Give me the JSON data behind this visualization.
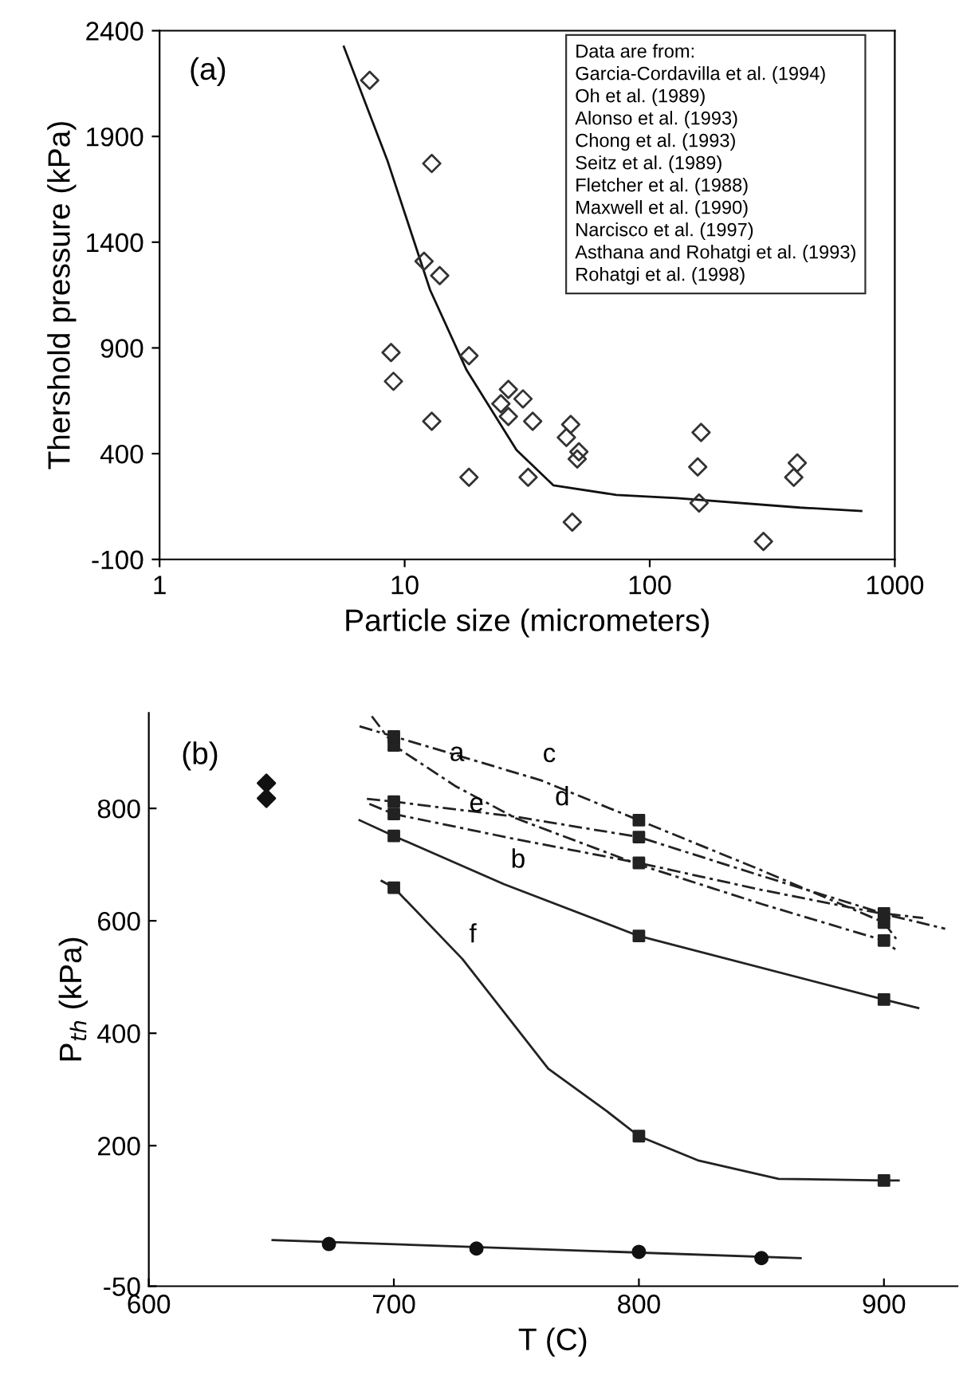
{
  "chart_data": [
    {
      "type": "scatter",
      "xlabel": "Particle size (micrometers)",
      "ylabel": "Thershold pressure (kPa)",
      "log": "x",
      "xlim": [
        1,
        1000
      ],
      "xticks": [
        1,
        10,
        100,
        1000
      ],
      "ylim": [
        -100,
        2400
      ],
      "yticks": [
        -100,
        400,
        900,
        1400,
        1900,
        2400
      ],
      "grid": false,
      "legend": false,
      "annotations": [
        "(a)",
        "Data are from:\nGarcia-Cordavilla et al. (1994)\nOh et al. (1989)\nAlonso et al. (1993)\nChong et al. (1993)\nSeitz et al. (1989)\nFletcher et al. (1988)\nMaxwell et al. (1990)\nNarcisco et al. (1997)\nAsthana and Rohatgi et al. (1993)\nRohatgi et al. (1998)"
      ],
      "series": [
        {
          "marker": "diamond",
          "color": "#333333",
          "x": [
            7.2,
            12.9,
            13.9,
            12.0,
            8.8,
            9.0,
            12.9,
            18.3,
            24.7,
            26.5,
            30.4,
            26.5,
            33.3,
            47.6,
            45.7,
            51.4,
            50.6,
            18.3,
            31.9,
            48.3,
            157,
            159,
            387,
            291,
            162,
            400
          ],
          "values": [
            2165,
            1772,
            1242,
            1310,
            878,
            742,
            553,
            863,
            636,
            704,
            659,
            576,
            553,
            538,
            477,
            409,
            375,
            288,
            288,
            76,
            337,
            167,
            288,
            -15,
            500,
            356
          ]
        },
        {
          "type": "line",
          "marker": "none",
          "line_style": "solid",
          "color": "#111111",
          "x": [
            5.65,
            8.5,
            12.7,
            17.9,
            28.6,
            40.5,
            73,
            129,
            410,
            730
          ],
          "values": [
            2324,
            1787,
            1174,
            795,
            417,
            250,
            205,
            190,
            145,
            129
          ]
        }
      ]
    },
    {
      "type": "line",
      "xlabel": "T (C)",
      "ylabel": "P$_{th}$ (kPa)",
      "xlim": [
        600,
        930
      ],
      "xticks": [
        600,
        700,
        800,
        900
      ],
      "ylim": [
        -50,
        970
      ],
      "yticks": [
        -50,
        200,
        400,
        600,
        800
      ],
      "grid": false,
      "legend": false,
      "annotations": [
        "(b)",
        {
          "text": "a",
          "x": 720,
          "y": 855
        },
        {
          "text": "c",
          "x": 758,
          "y": 853
        },
        {
          "text": "d",
          "x": 763,
          "y": 776
        },
        {
          "text": "e",
          "x": 728,
          "y": 765
        },
        {
          "text": "b",
          "x": 745,
          "y": 665
        },
        {
          "text": "f",
          "x": 728,
          "y": 532
        }
      ],
      "series": [
        {
          "marker": "none",
          "line_style": "dashed",
          "color": "#222222",
          "x": [
            691,
            700,
            725,
            750,
            800,
            850,
            900,
            905
          ],
          "values": [
            964,
            912,
            840,
            782,
            700,
            630,
            565,
            548
          ]
        },
        {
          "marker": "none",
          "line_style": "solid",
          "color": "#222222",
          "x": [
            686,
            700,
            745,
            800,
            900,
            914
          ],
          "values": [
            779,
            751,
            665,
            573,
            460,
            445
          ]
        },
        {
          "marker": "none",
          "line_style": "dashed",
          "color": "#222222",
          "x": [
            686,
            700,
            760,
            800,
            850,
            900,
            905
          ],
          "values": [
            946,
            928,
            850,
            779,
            690,
            597,
            568
          ]
        },
        {
          "marker": "none",
          "line_style": "dashed",
          "color": "#222222",
          "x": [
            689,
            700,
            750,
            800,
            850,
            900,
            916
          ],
          "values": [
            817,
            812,
            785,
            749,
            680,
            613,
            605
          ]
        },
        {
          "marker": "none",
          "line_style": "dashed",
          "color": "#222222",
          "x": [
            690,
            700,
            750,
            800,
            850,
            900,
            925
          ],
          "values": [
            808,
            790,
            745,
            703,
            655,
            612,
            586
          ]
        },
        {
          "marker": "none",
          "line_style": "solid",
          "color": "#222222",
          "x": [
            695,
            700,
            728,
            763,
            787,
            800,
            824,
            857,
            900,
            906
          ],
          "values": [
            671,
            659,
            532,
            337,
            261,
            217,
            174,
            141,
            138,
            138
          ]
        },
        {
          "marker": "none",
          "line_style": "solid",
          "color": "#222222",
          "x": [
            650.5,
            866
          ],
          "values": [
            32,
            0
          ]
        },
        {
          "type": "scatter",
          "marker": "square",
          "color": "#222222",
          "x": [
            700,
            700,
            700,
            700,
            700,
            700,
            800,
            800,
            800,
            800,
            800,
            900,
            900,
            900,
            900,
            900
          ],
          "values": [
            912,
            928,
            751,
            812,
            790,
            659,
            779,
            749,
            703,
            573,
            217,
            565,
            597,
            613,
            460,
            138
          ]
        },
        {
          "type": "scatter",
          "marker": "circle",
          "color": "#111111",
          "x": [
            673.5,
            733.7,
            800,
            850
          ],
          "values": [
            25,
            17,
            11,
            0
          ]
        },
        {
          "type": "scatter",
          "marker": "diamond",
          "color": "#111111",
          "x": [
            648,
            648
          ],
          "values": [
            845,
            818
          ]
        }
      ]
    }
  ]
}
